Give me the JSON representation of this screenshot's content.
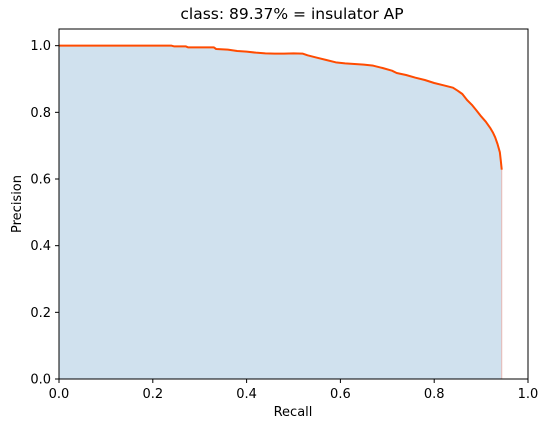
{
  "chart_data": {
    "type": "area",
    "title": "class: 89.37% = insulator AP",
    "xlabel": "Recall",
    "ylabel": "Precision",
    "xlim": [
      0,
      1
    ],
    "ylim": [
      0,
      1.05
    ],
    "xticks": [
      0.0,
      0.2,
      0.4,
      0.6,
      0.8,
      1.0
    ],
    "yticks": [
      0.0,
      0.2,
      0.4,
      0.6,
      0.8,
      1.0
    ],
    "xtick_labels": [
      "0.0",
      "0.2",
      "0.4",
      "0.6",
      "0.8",
      "1.0"
    ],
    "ytick_labels": [
      "0.0",
      "0.2",
      "0.4",
      "0.6",
      "0.8",
      "1.0"
    ],
    "grid": false,
    "legend": "none",
    "series": [
      {
        "x": [
          0.0,
          0.05,
          0.1,
          0.15,
          0.2,
          0.24,
          0.245,
          0.27,
          0.275,
          0.33,
          0.335,
          0.36,
          0.38,
          0.4,
          0.42,
          0.44,
          0.46,
          0.48,
          0.5,
          0.52,
          0.53,
          0.55,
          0.57,
          0.59,
          0.61,
          0.63,
          0.65,
          0.67,
          0.69,
          0.71,
          0.72,
          0.74,
          0.76,
          0.78,
          0.8,
          0.82,
          0.84,
          0.85,
          0.86,
          0.87,
          0.88,
          0.89,
          0.9,
          0.91,
          0.92,
          0.925,
          0.93,
          0.935,
          0.94,
          0.942,
          0.944
        ],
        "y": [
          1.0,
          1.0,
          1.0,
          1.0,
          1.0,
          1.0,
          0.998,
          0.998,
          0.995,
          0.995,
          0.99,
          0.988,
          0.984,
          0.982,
          0.979,
          0.977,
          0.976,
          0.976,
          0.977,
          0.976,
          0.971,
          0.964,
          0.957,
          0.95,
          0.947,
          0.945,
          0.943,
          0.94,
          0.933,
          0.925,
          0.918,
          0.912,
          0.904,
          0.897,
          0.888,
          0.881,
          0.874,
          0.865,
          0.855,
          0.837,
          0.823,
          0.806,
          0.788,
          0.772,
          0.752,
          0.74,
          0.725,
          0.705,
          0.68,
          0.655,
          0.628
        ]
      }
    ],
    "colors": {
      "line": "#ff4b00",
      "fill": "#d0e1ee",
      "fill_edge": "#e8b7b2",
      "axes": "#000000",
      "background": "#ffffff"
    }
  }
}
